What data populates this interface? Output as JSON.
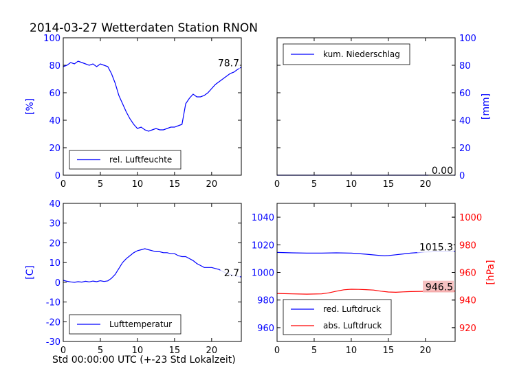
{
  "figure": {
    "title": "2014-03-27 Wetterdaten Station RNON",
    "xlabel": "Std 00:00:00 UTC (+-23 Std Lokalzeit)"
  },
  "colors": {
    "axis_blue": "#0000ff",
    "axis_red": "#ff0000",
    "line_blue": "#0000ff",
    "line_red": "#ff0000",
    "highlight_bg": "#f4b6b6"
  },
  "chart_data": [
    {
      "id": "humidity",
      "type": "line",
      "xlim": [
        0,
        24
      ],
      "ylim": [
        0,
        100
      ],
      "xticks": [
        0,
        5,
        10,
        15,
        20
      ],
      "yticks": [
        0,
        20,
        40,
        60,
        80,
        100
      ],
      "ylabel": "[%]",
      "legend_loc": "bottom-left",
      "series": [
        {
          "name": "rel. Luftfeuchte",
          "color": "#0000ff",
          "x": [
            0,
            0.5,
            1,
            1.5,
            2,
            2.5,
            3,
            3.5,
            4,
            4.5,
            5,
            5.5,
            6,
            6.5,
            7,
            7.5,
            8,
            8.5,
            9,
            9.5,
            10,
            10.5,
            11,
            11.5,
            12,
            12.5,
            13,
            13.5,
            14,
            14.5,
            15,
            15.5,
            16,
            16.5,
            17,
            17.5,
            18,
            18.5,
            19,
            19.5,
            20,
            20.5,
            21,
            21.5,
            22,
            22.5,
            23,
            23.5,
            24
          ],
          "y": [
            79,
            80,
            82,
            81,
            83,
            82,
            81,
            80,
            81,
            79,
            81,
            80,
            79,
            74,
            67,
            58,
            52,
            46,
            41,
            37,
            34,
            35,
            33,
            32,
            33,
            34,
            33,
            33,
            34,
            35,
            35,
            36,
            37,
            52,
            56,
            59,
            57,
            57,
            58,
            60,
            63,
            66,
            68,
            70,
            72,
            74,
            75,
            77,
            78.7
          ]
        }
      ],
      "annotations": [
        {
          "text": "78.7",
          "at_x": 24,
          "at_y": 78.7
        }
      ]
    },
    {
      "id": "precip",
      "type": "line",
      "xlim": [
        0,
        24
      ],
      "ylim": [
        0,
        100
      ],
      "xticks": [
        0,
        5,
        10,
        15,
        20
      ],
      "yticks": [
        0,
        20,
        40,
        60,
        80,
        100
      ],
      "ylabel": "[mm]",
      "y_axis_side": "right",
      "legend_loc": "top-left",
      "series": [
        {
          "name": "kum. Niederschlag",
          "color": "#0000ff",
          "x": [
            0,
            24
          ],
          "y": [
            0,
            0
          ]
        }
      ],
      "annotations": [
        {
          "text": "0.00",
          "at_x": 24,
          "at_y": 0
        }
      ]
    },
    {
      "id": "temperature",
      "type": "line",
      "xlim": [
        0,
        24
      ],
      "ylim": [
        -30,
        40
      ],
      "xticks": [
        0,
        5,
        10,
        15,
        20
      ],
      "yticks": [
        -30,
        -20,
        -10,
        0,
        10,
        20,
        30,
        40
      ],
      "ylabel": "[C]",
      "legend_loc": "bottom-left",
      "series": [
        {
          "name": "Lufttemperatur",
          "color": "#0000ff",
          "x": [
            0,
            0.5,
            1,
            1.5,
            2,
            2.5,
            3,
            3.5,
            4,
            4.5,
            5,
            5.5,
            6,
            6.5,
            7,
            7.5,
            8,
            8.5,
            9,
            9.5,
            10,
            10.5,
            11,
            11.5,
            12,
            12.5,
            13,
            13.5,
            14,
            14.5,
            15,
            15.5,
            16,
            16.5,
            17,
            17.5,
            18,
            18.5,
            19,
            19.5,
            20,
            20.5,
            21,
            21.5,
            22,
            22.5,
            23,
            23.5,
            24
          ],
          "y": [
            1,
            0.5,
            0.2,
            0,
            0.3,
            0.1,
            0.5,
            0.2,
            0.6,
            0.3,
            0.8,
            0.4,
            0.7,
            2,
            4,
            7,
            10,
            12,
            13.5,
            15,
            16,
            16.5,
            17,
            16.5,
            16,
            15.5,
            15.5,
            15,
            15,
            14.5,
            14.5,
            13.5,
            13,
            13,
            12,
            11,
            9.5,
            8.5,
            7.5,
            7.5,
            7.5,
            7,
            6.5,
            5.5,
            4.5,
            4,
            3.5,
            3,
            2.7
          ]
        }
      ],
      "annotations": [
        {
          "text": "2.7",
          "at_x": 24,
          "at_y": 2.7
        }
      ]
    },
    {
      "id": "pressure",
      "type": "line",
      "xlim": [
        0,
        24
      ],
      "ylim": [
        950,
        1050
      ],
      "xticks": [
        0,
        5,
        10,
        15,
        20
      ],
      "yticks": [
        960,
        980,
        1000,
        1020,
        1040
      ],
      "y2lim": [
        910,
        1010
      ],
      "y2ticks": [
        920,
        940,
        960,
        980,
        1000
      ],
      "y2label": "[hPa]",
      "legend_loc": "bottom-left",
      "series": [
        {
          "name": "red. Luftdruck",
          "axis": "left",
          "color": "#0000ff",
          "x": [
            0,
            2,
            4,
            6,
            8,
            10,
            12,
            13,
            14,
            14.5,
            15,
            16,
            17,
            18,
            20,
            22,
            24
          ],
          "y": [
            1014.5,
            1014.2,
            1014,
            1014,
            1014.2,
            1014,
            1013.2,
            1012.7,
            1012.2,
            1012,
            1012.2,
            1012.8,
            1013.4,
            1014,
            1014.8,
            1015.1,
            1015.3
          ]
        },
        {
          "name": "abs. Luftdruck",
          "axis": "right",
          "color": "#ff0000",
          "x": [
            0,
            2,
            4,
            6,
            7,
            8,
            9,
            10,
            11,
            12,
            13,
            14,
            15,
            16,
            17,
            18,
            20,
            22,
            24
          ],
          "y": [
            944.8,
            944.5,
            944.3,
            944.5,
            945.2,
            946.4,
            947.4,
            947.8,
            947.7,
            947.5,
            947.2,
            946.4,
            945.8,
            945.6,
            945.9,
            946.1,
            946.3,
            946.4,
            946.5
          ]
        }
      ],
      "annotations": [
        {
          "text": "1015.3",
          "at_x": 24,
          "at_y": 1015.3,
          "axis": "left"
        },
        {
          "text": "946.5",
          "at_x": 24,
          "at_y": 946.5,
          "axis": "right",
          "highlight": true
        }
      ]
    }
  ]
}
